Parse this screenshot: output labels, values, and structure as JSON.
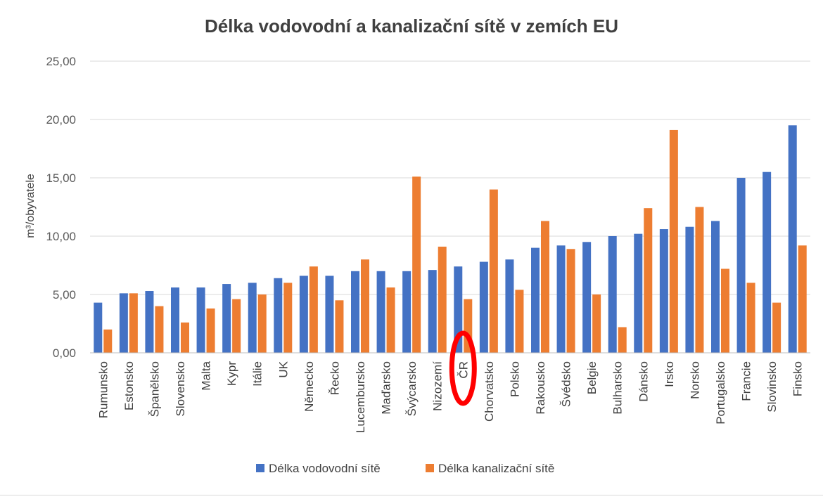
{
  "chart_data": {
    "type": "bar",
    "title": "Délka vodovodní a kanalizační sítě v zemích EU",
    "ylabel": "m³/obyvatele",
    "xlabel": "",
    "ylim": [
      0,
      25
    ],
    "yticks": [
      "0,00",
      "5,00",
      "10,00",
      "15,00",
      "20,00",
      "25,00"
    ],
    "grid": true,
    "legend_position": "bottom",
    "categories": [
      "Rumunsko",
      "Estonsko",
      "Španělsko",
      "Slovensko",
      "Malta",
      "Kypr",
      "Itálie",
      "UK",
      "Německo",
      "Řecko",
      "Lucembursko",
      "Maďarsko",
      "Švýcarsko",
      "Nizozemí",
      "ČR",
      "Chorvatsko",
      "Polsko",
      "Rakousko",
      "Švédsko",
      "Belgie",
      "Bulharsko",
      "Dánsko",
      "Irsko",
      "Norsko",
      "Portugalsko",
      "Francie",
      "Slovinsko",
      "Finsko"
    ],
    "series": [
      {
        "name": "Délka vodovodní sítě",
        "color": "#4472C4",
        "values": [
          4.3,
          5.1,
          5.3,
          5.6,
          5.6,
          5.9,
          6.0,
          6.4,
          6.6,
          6.6,
          7.0,
          7.0,
          7.0,
          7.1,
          7.4,
          7.8,
          8.0,
          9.0,
          9.2,
          9.5,
          10.0,
          10.2,
          10.6,
          10.8,
          11.3,
          15.0,
          15.5,
          19.5
        ]
      },
      {
        "name": "Délka kanalizační sítě",
        "color": "#ED7D31",
        "values": [
          2.0,
          5.1,
          4.0,
          2.6,
          3.8,
          4.6,
          5.0,
          6.0,
          7.4,
          4.5,
          8.0,
          5.6,
          15.1,
          9.1,
          4.6,
          14.0,
          5.4,
          11.3,
          8.9,
          5.0,
          2.2,
          12.4,
          19.1,
          12.5,
          7.2,
          6.0,
          4.3,
          9.2
        ]
      }
    ],
    "highlight": {
      "category": "ČR",
      "shape": "ellipse",
      "color": "#FF0000"
    }
  }
}
